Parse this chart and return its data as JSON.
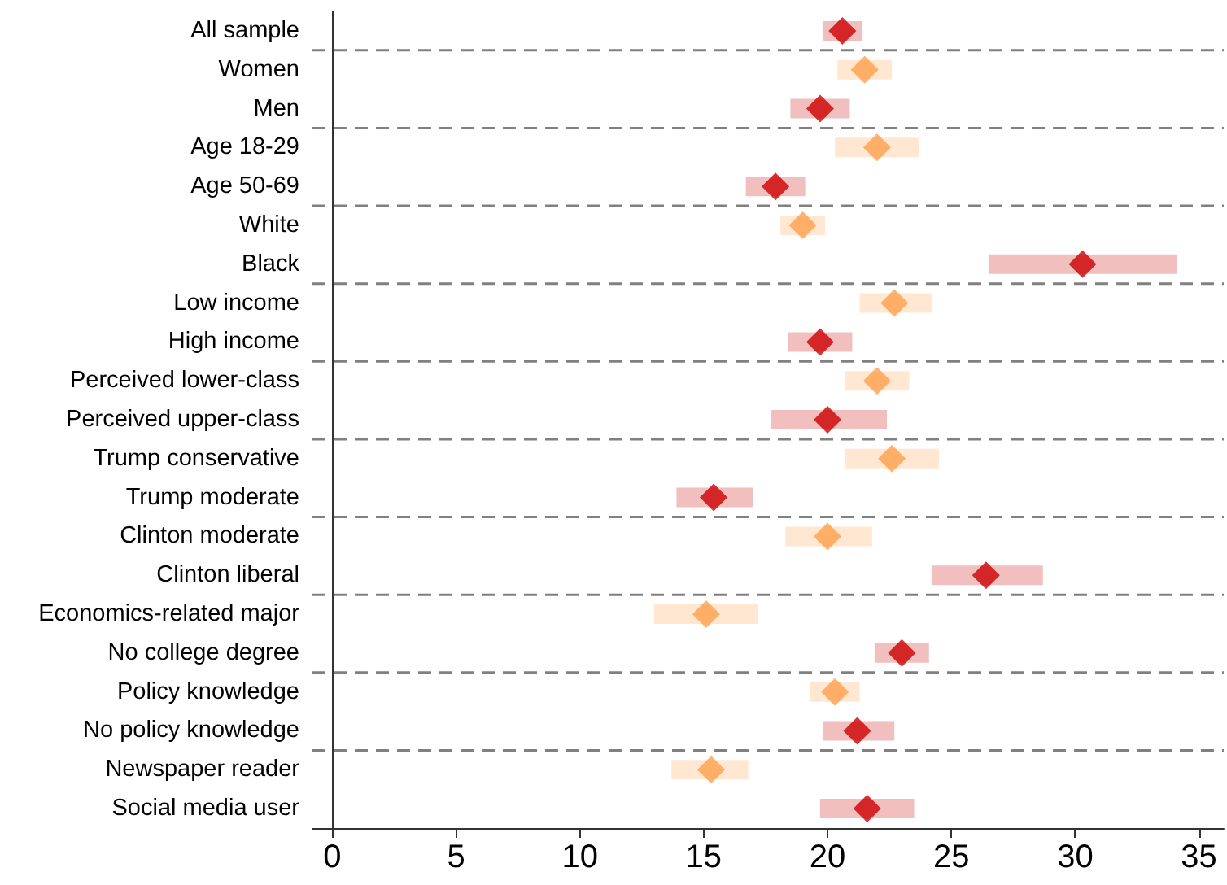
{
  "chart_data": {
    "type": "scatter",
    "orientation": "horizontal",
    "marker": "diamond",
    "categories": [
      "All sample",
      "Women",
      "Men",
      "Age 18-29",
      "Age 50-69",
      "White",
      "Black",
      "Low income",
      "High income",
      "Perceived lower-class",
      "Perceived upper-class",
      "Trump conservative",
      "Trump moderate",
      "Clinton moderate",
      "Clinton liberal",
      "Economics-related major",
      "No college degree",
      "Policy knowledge",
      "No policy knowledge",
      "Newspaper reader",
      "Social media user"
    ],
    "values": [
      20.6,
      21.5,
      19.7,
      22.0,
      17.9,
      19.0,
      30.3,
      22.7,
      19.7,
      22.0,
      20.0,
      22.6,
      15.4,
      20.0,
      26.4,
      15.1,
      23.0,
      20.3,
      21.2,
      15.3,
      21.6
    ],
    "errors": [
      [
        19.8,
        21.4
      ],
      [
        20.4,
        22.6
      ],
      [
        18.5,
        20.9
      ],
      [
        20.3,
        23.7
      ],
      [
        16.7,
        19.1
      ],
      [
        18.1,
        19.9
      ],
      [
        26.5,
        34.1
      ],
      [
        21.3,
        24.2
      ],
      [
        18.4,
        21.0
      ],
      [
        20.7,
        23.3
      ],
      [
        17.7,
        22.4
      ],
      [
        20.7,
        24.5
      ],
      [
        13.9,
        17.0
      ],
      [
        18.3,
        21.8
      ],
      [
        24.2,
        28.7
      ],
      [
        13.0,
        17.2
      ],
      [
        21.9,
        24.1
      ],
      [
        19.3,
        21.3
      ],
      [
        19.8,
        22.7
      ],
      [
        13.7,
        16.8
      ],
      [
        19.7,
        23.5
      ]
    ],
    "colors": [
      "#cc0000",
      "#ffa04c",
      "#cc0000",
      "#ffa04c",
      "#cc0000",
      "#ffa04c",
      "#cc0000",
      "#ffa04c",
      "#cc0000",
      "#ffa04c",
      "#cc0000",
      "#ffa04c",
      "#cc0000",
      "#ffa04c",
      "#cc0000",
      "#ffa04c",
      "#cc0000",
      "#ffa04c",
      "#cc0000",
      "#ffa04c",
      "#cc0000"
    ],
    "xlim": [
      -0.8,
      36
    ],
    "xticks": [
      0,
      5,
      10,
      15,
      20,
      25,
      30,
      35
    ],
    "ref_lines": [
      {
        "axis": "y",
        "value": "All sample",
        "color": "#808080",
        "line_style": "dashed"
      },
      {
        "axis": "y",
        "value": "Men",
        "color": "#808080",
        "line_style": "dashed"
      },
      {
        "axis": "y",
        "value": "Age 50-69",
        "color": "#808080",
        "line_style": "dashed"
      },
      {
        "axis": "y",
        "value": "Black",
        "color": "#808080",
        "line_style": "dashed"
      },
      {
        "axis": "y",
        "value": "High income",
        "color": "#808080",
        "line_style": "dashed"
      },
      {
        "axis": "y",
        "value": "Perceived upper-class",
        "color": "#808080",
        "line_style": "dashed"
      },
      {
        "axis": "y",
        "value": "Trump moderate",
        "color": "#808080",
        "line_style": "dashed"
      },
      {
        "axis": "y",
        "value": "Clinton liberal",
        "color": "#808080",
        "line_style": "dashed"
      },
      {
        "axis": "y",
        "value": "No college degree",
        "color": "#808080",
        "line_style": "dashed"
      },
      {
        "axis": "y",
        "value": "No policy knowledge",
        "color": "#808080",
        "line_style": "dashed"
      }
    ],
    "grid": false
  }
}
